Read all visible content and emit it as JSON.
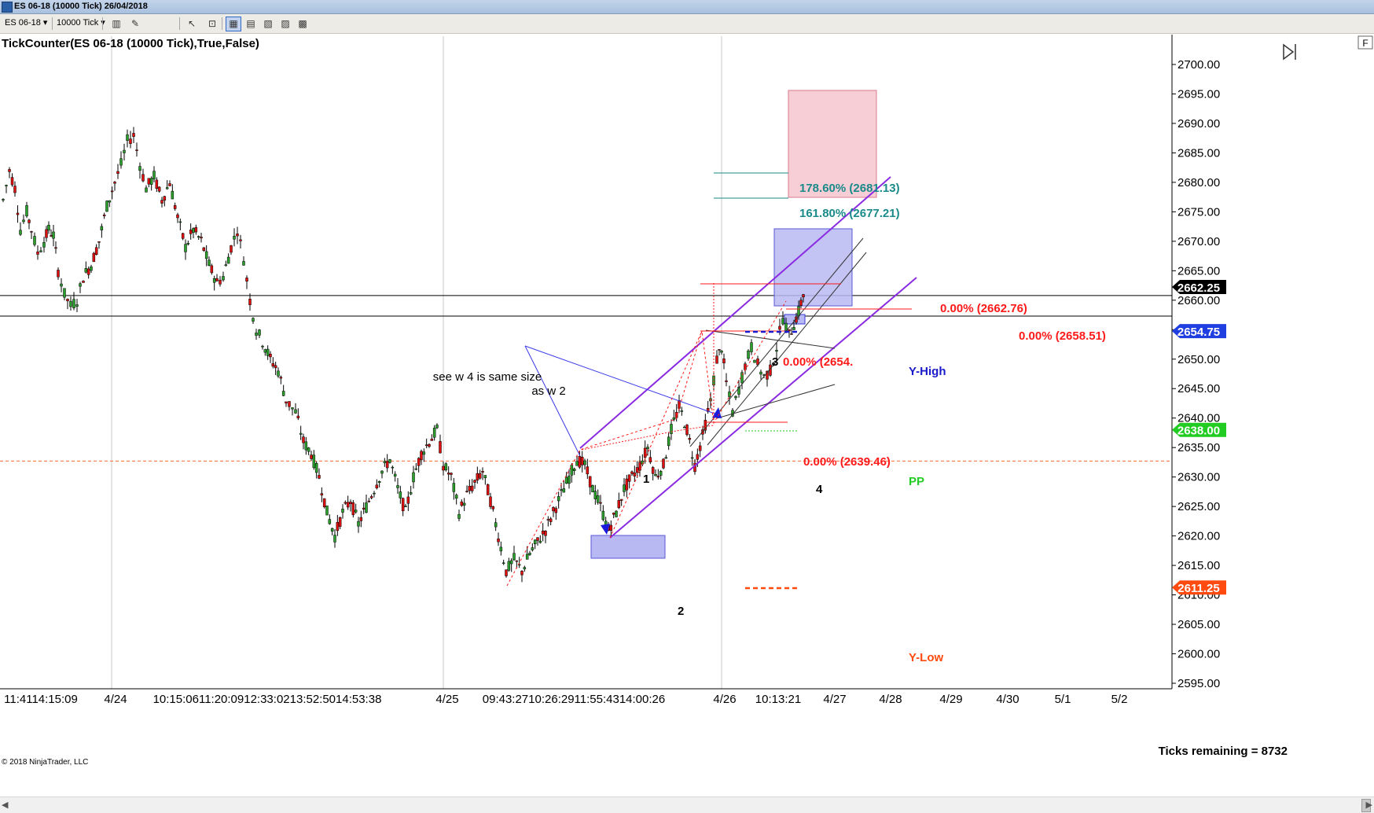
{
  "window": {
    "title": "ES 06-18 (10000 Tick)  26/04/2018"
  },
  "toolbar": {
    "instrument": "ES 06-18",
    "period": "10000 Tick",
    "icons": [
      "bar-type-icon",
      "drawing-pen-icon",
      "cursor-arrow-icon",
      "crosshair-icon",
      "data-box-icon",
      "chart-properties-icon",
      "indicators-icon",
      "strategies-icon",
      "print-icon"
    ]
  },
  "chart_data": {
    "type": "candlestick",
    "indicator_label": "TickCounter(ES 06-18 (10000 Tick),True,False)",
    "copyright": "© 2018 NinjaTrader, LLC",
    "ticks_remaining": "Ticks remaining = 8732",
    "ylim": [
      2595,
      2700
    ],
    "y_ticks": [
      "2700.00",
      "2695.00",
      "2690.00",
      "2685.00",
      "2680.00",
      "2675.00",
      "2670.00",
      "2665.00",
      "2660.00",
      "2655.00",
      "2650.00",
      "2645.00",
      "2640.00",
      "2635.00",
      "2630.00",
      "2625.00",
      "2620.00",
      "2615.00",
      "2610.00",
      "2605.00",
      "2600.00",
      "2595.00"
    ],
    "x_tick_labels": [
      "11:4114:15:09",
      "4/24",
      "10:15:0611:20:0912:33:0213:52:5014:53:38",
      "4/25",
      "09:43:2710:26:2911:55:4314:00:26",
      "4/26",
      "10:13:21",
      "4/27",
      "4/28",
      "4/29",
      "4/30",
      "5/1",
      "5/2"
    ],
    "price_tags": [
      {
        "label": "2662.25",
        "price": 2662.25,
        "color": "#000000"
      },
      {
        "label": "2654.75",
        "price": 2654.75,
        "color": "#1f3fe0"
      },
      {
        "label": "2638.00",
        "price": 2638.0,
        "color": "#22cc22"
      },
      {
        "label": "2611.25",
        "price": 2611.25,
        "color": "#ff4a10"
      }
    ],
    "horizontal_levels": [
      {
        "price": 2660.8,
        "color": "#000000",
        "style": "solid"
      },
      {
        "price": 2657.3,
        "color": "#000000",
        "style": "solid"
      },
      {
        "price": 2632.7,
        "color": "#ff6a3a",
        "style": "dashed"
      }
    ],
    "close_path": [
      {
        "x": 0,
        "y": 2677
      },
      {
        "x": 8,
        "y": 2682
      },
      {
        "x": 15,
        "y": 2679
      },
      {
        "x": 22,
        "y": 2672
      },
      {
        "x": 30,
        "y": 2675
      },
      {
        "x": 36,
        "y": 2672
      },
      {
        "x": 44,
        "y": 2668
      },
      {
        "x": 52,
        "y": 2670
      },
      {
        "x": 58,
        "y": 2672
      },
      {
        "x": 64,
        "y": 2671
      },
      {
        "x": 70,
        "y": 2665
      },
      {
        "x": 78,
        "y": 2661
      },
      {
        "x": 86,
        "y": 2659
      },
      {
        "x": 94,
        "y": 2660
      },
      {
        "x": 102,
        "y": 2664
      },
      {
        "x": 112,
        "y": 2666
      },
      {
        "x": 122,
        "y": 2670
      },
      {
        "x": 132,
        "y": 2676
      },
      {
        "x": 142,
        "y": 2680
      },
      {
        "x": 150,
        "y": 2683
      },
      {
        "x": 158,
        "y": 2687
      },
      {
        "x": 166,
        "y": 2688
      },
      {
        "x": 174,
        "y": 2683
      },
      {
        "x": 182,
        "y": 2679
      },
      {
        "x": 192,
        "y": 2681
      },
      {
        "x": 202,
        "y": 2677
      },
      {
        "x": 212,
        "y": 2680
      },
      {
        "x": 222,
        "y": 2674
      },
      {
        "x": 232,
        "y": 2669
      },
      {
        "x": 242,
        "y": 2672
      },
      {
        "x": 252,
        "y": 2670
      },
      {
        "x": 262,
        "y": 2666
      },
      {
        "x": 272,
        "y": 2663
      },
      {
        "x": 280,
        "y": 2664
      },
      {
        "x": 290,
        "y": 2669
      },
      {
        "x": 298,
        "y": 2672
      },
      {
        "x": 306,
        "y": 2667
      },
      {
        "x": 314,
        "y": 2660
      },
      {
        "x": 322,
        "y": 2655
      },
      {
        "x": 330,
        "y": 2653
      },
      {
        "x": 340,
        "y": 2650
      },
      {
        "x": 350,
        "y": 2648
      },
      {
        "x": 360,
        "y": 2643
      },
      {
        "x": 372,
        "y": 2641
      },
      {
        "x": 382,
        "y": 2636
      },
      {
        "x": 392,
        "y": 2634
      },
      {
        "x": 402,
        "y": 2630
      },
      {
        "x": 412,
        "y": 2624
      },
      {
        "x": 422,
        "y": 2620
      },
      {
        "x": 432,
        "y": 2624
      },
      {
        "x": 442,
        "y": 2626
      },
      {
        "x": 452,
        "y": 2622
      },
      {
        "x": 462,
        "y": 2625
      },
      {
        "x": 472,
        "y": 2628
      },
      {
        "x": 482,
        "y": 2631
      },
      {
        "x": 492,
        "y": 2633
      },
      {
        "x": 502,
        "y": 2628
      },
      {
        "x": 512,
        "y": 2624
      },
      {
        "x": 522,
        "y": 2630
      },
      {
        "x": 532,
        "y": 2634
      },
      {
        "x": 542,
        "y": 2636
      },
      {
        "x": 552,
        "y": 2638
      },
      {
        "x": 560,
        "y": 2632
      },
      {
        "x": 570,
        "y": 2630
      },
      {
        "x": 580,
        "y": 2624
      },
      {
        "x": 590,
        "y": 2627
      },
      {
        "x": 600,
        "y": 2629
      },
      {
        "x": 610,
        "y": 2631
      },
      {
        "x": 620,
        "y": 2626
      },
      {
        "x": 630,
        "y": 2620
      },
      {
        "x": 640,
        "y": 2614
      },
      {
        "x": 650,
        "y": 2616
      },
      {
        "x": 660,
        "y": 2614
      },
      {
        "x": 670,
        "y": 2617
      },
      {
        "x": 680,
        "y": 2619
      },
      {
        "x": 690,
        "y": 2621
      },
      {
        "x": 700,
        "y": 2624
      },
      {
        "x": 710,
        "y": 2627
      },
      {
        "x": 720,
        "y": 2630
      },
      {
        "x": 730,
        "y": 2633
      },
      {
        "x": 740,
        "y": 2632
      },
      {
        "x": 750,
        "y": 2628
      },
      {
        "x": 760,
        "y": 2625
      },
      {
        "x": 770,
        "y": 2621
      },
      {
        "x": 780,
        "y": 2624
      },
      {
        "x": 790,
        "y": 2628
      },
      {
        "x": 800,
        "y": 2630
      },
      {
        "x": 810,
        "y": 2632
      },
      {
        "x": 820,
        "y": 2635
      },
      {
        "x": 830,
        "y": 2630
      },
      {
        "x": 840,
        "y": 2632
      },
      {
        "x": 850,
        "y": 2638
      },
      {
        "x": 860,
        "y": 2642
      },
      {
        "x": 870,
        "y": 2638
      },
      {
        "x": 880,
        "y": 2632
      },
      {
        "x": 890,
        "y": 2637
      },
      {
        "x": 900,
        "y": 2643
      },
      {
        "x": 908,
        "y": 2650
      },
      {
        "x": 914,
        "y": 2652
      },
      {
        "x": 920,
        "y": 2646
      },
      {
        "x": 928,
        "y": 2641
      },
      {
        "x": 936,
        "y": 2645
      },
      {
        "x": 944,
        "y": 2649
      },
      {
        "x": 952,
        "y": 2652
      },
      {
        "x": 960,
        "y": 2649
      },
      {
        "x": 968,
        "y": 2647
      },
      {
        "x": 976,
        "y": 2648
      },
      {
        "x": 984,
        "y": 2652
      },
      {
        "x": 992,
        "y": 2657
      },
      {
        "x": 1000,
        "y": 2654
      },
      {
        "x": 1006,
        "y": 2656
      },
      {
        "x": 1012,
        "y": 2658
      },
      {
        "x": 1018,
        "y": 2661
      },
      {
        "x": 1022,
        "y": 2662.25
      }
    ],
    "annotations": {
      "note_line1": "see w 4 is same size",
      "note_line2": "as w 2",
      "wave_1": "1",
      "wave_2": "2",
      "wave_3": "3",
      "wave_4": "4",
      "fib_178": "178.60% (2681.13)",
      "fib_161": "161.80% (2677.21)",
      "level_2662": "0.00% (2662.76)",
      "level_2658": "0.00% (2658.51)",
      "level_2654": "0.00% (2654.",
      "level_2639": "0.00% (2639.46)",
      "y_high": "Y-High",
      "y_low": "Y-Low",
      "pp": "PP",
      "f_button": "F"
    },
    "colors": {
      "up_candle": "#2ca02c",
      "down_candle": "#e01010",
      "channel": "#8a2be2",
      "fib_text": "#1a8a8a",
      "level_text": "#ff1a1a",
      "y_high": "#1a1acc",
      "y_low": "#ff4a10",
      "pp": "#22cc22"
    }
  }
}
